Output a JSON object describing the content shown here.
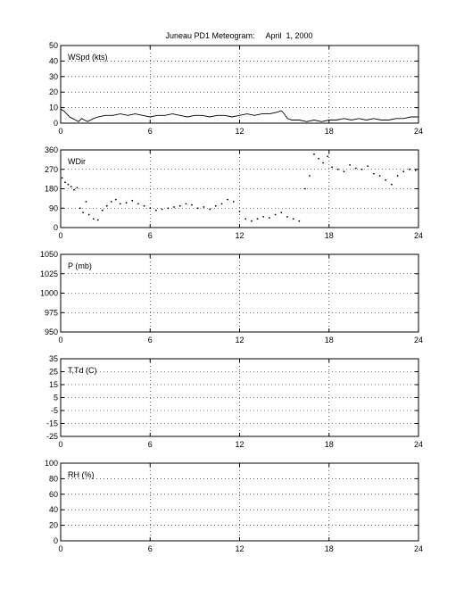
{
  "title": "Juneau PD1 Meteogram:     April  1, 2000",
  "chart_data": [
    {
      "type": "line",
      "label": "WSpd (kts)",
      "xlim": [
        0,
        24
      ],
      "xticks": [
        0,
        6,
        12,
        18,
        24
      ],
      "ylim": [
        0,
        50
      ],
      "yticks": [
        0,
        10,
        20,
        30,
        40,
        50
      ],
      "grid": true,
      "series": [
        {
          "style": "line",
          "x": [
            0,
            0.2,
            0.4,
            0.6,
            0.8,
            1.0,
            1.2,
            1.4,
            1.6,
            1.8,
            2.0,
            2.2,
            2.5,
            3.0,
            3.5,
            4.0,
            4.5,
            5.0,
            5.5,
            6.0,
            6.5,
            7.0,
            7.5,
            8.0,
            8.5,
            9.0,
            9.5,
            10.0,
            10.5,
            11.0,
            11.5,
            12.0,
            12.5,
            13.0,
            13.5,
            14.0,
            14.5,
            14.8,
            15.0,
            15.2,
            15.5,
            16.0,
            16.5,
            17.0,
            17.5,
            18.0,
            18.5,
            19.0,
            19.5,
            20.0,
            20.5,
            21.0,
            21.5,
            22.0,
            22.5,
            23.0,
            23.5,
            24.0
          ],
          "y": [
            9,
            8,
            6,
            4,
            3,
            2,
            1,
            3,
            2,
            1,
            2,
            3,
            4,
            5,
            5,
            6,
            5,
            6,
            5,
            4,
            5,
            5,
            6,
            5,
            4,
            5,
            5,
            4,
            5,
            5,
            4,
            5,
            6,
            5,
            6,
            6,
            7,
            8,
            6,
            3,
            2,
            2,
            1,
            2,
            1,
            2,
            2,
            3,
            2,
            3,
            2,
            3,
            2,
            2,
            3,
            3,
            4,
            4
          ]
        }
      ]
    },
    {
      "type": "scatter",
      "label": "WDir",
      "xlim": [
        0,
        24
      ],
      "xticks": [
        0,
        6,
        12,
        18,
        24
      ],
      "ylim": [
        0,
        360
      ],
      "yticks": [
        0,
        90,
        180,
        270,
        360
      ],
      "grid": true,
      "series": [
        {
          "style": "dots",
          "x": [
            0.1,
            0.3,
            0.5,
            0.7,
            0.9,
            1.1,
            1.3,
            1.5,
            1.7,
            1.9,
            2.2,
            2.5,
            2.8,
            3.1,
            3.4,
            3.7,
            4.0,
            4.4,
            4.8,
            5.2,
            5.6,
            6.0,
            6.4,
            6.8,
            7.2,
            7.6,
            8.0,
            8.4,
            8.8,
            9.2,
            9.6,
            10.0,
            10.4,
            10.8,
            11.2,
            11.6,
            12.0,
            12.4,
            12.8,
            13.2,
            13.6,
            14.0,
            14.4,
            14.8,
            15.2,
            15.6,
            16.0,
            16.4,
            16.7,
            17.0,
            17.3,
            17.6,
            17.9,
            18.2,
            18.6,
            19.0,
            19.4,
            19.8,
            20.2,
            20.6,
            21.0,
            21.4,
            21.8,
            22.2,
            22.6,
            23.0,
            23.4,
            23.8
          ],
          "y": [
            230,
            210,
            200,
            190,
            175,
            185,
            90,
            70,
            120,
            60,
            40,
            35,
            80,
            100,
            120,
            130,
            110,
            115,
            125,
            110,
            100,
            90,
            80,
            85,
            90,
            95,
            100,
            110,
            105,
            90,
            95,
            85,
            100,
            110,
            130,
            120,
            75,
            40,
            30,
            40,
            50,
            45,
            60,
            70,
            50,
            40,
            30,
            180,
            240,
            340,
            320,
            300,
            330,
            280,
            270,
            260,
            290,
            275,
            270,
            285,
            250,
            240,
            220,
            200,
            240,
            260,
            270,
            265
          ]
        }
      ]
    },
    {
      "type": "line",
      "label": "P (mb)",
      "xlim": [
        0,
        24
      ],
      "xticks": [
        0,
        6,
        12,
        18,
        24
      ],
      "ylim": [
        950,
        1050
      ],
      "yticks": [
        950,
        975,
        1000,
        1025,
        1050
      ],
      "grid": true,
      "series": []
    },
    {
      "type": "line",
      "label": "T,Td (C)",
      "xlim": [
        0,
        24
      ],
      "xticks": [
        0,
        6,
        12,
        18,
        24
      ],
      "ylim": [
        -25,
        35
      ],
      "yticks": [
        -25,
        -15,
        -5,
        5,
        15,
        25,
        35
      ],
      "grid": true,
      "series": []
    },
    {
      "type": "line",
      "label": "RH (%)",
      "xlim": [
        0,
        24
      ],
      "xticks": [
        0,
        6,
        12,
        18,
        24
      ],
      "ylim": [
        0,
        100
      ],
      "yticks": [
        0,
        20,
        40,
        60,
        80,
        100
      ],
      "grid": true,
      "series": []
    }
  ]
}
